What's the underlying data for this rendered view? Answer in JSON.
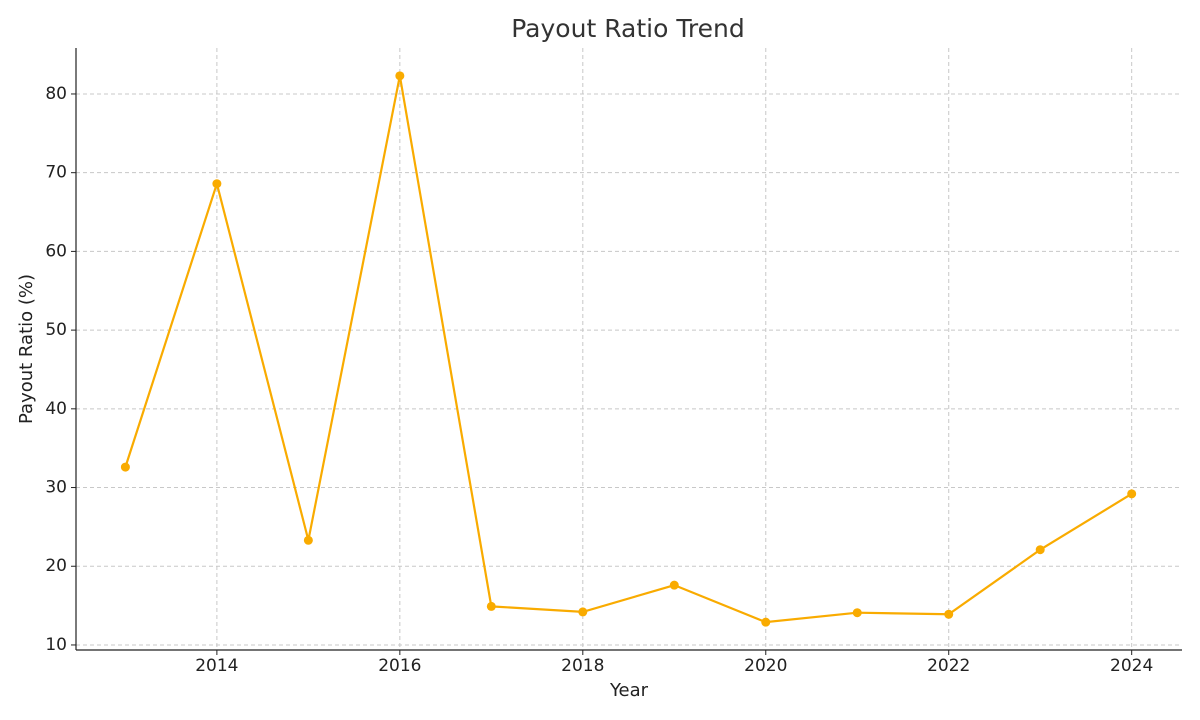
{
  "chart_data": {
    "type": "line",
    "title": "Payout Ratio Trend",
    "x_label": "Year",
    "y_label": "Payout Ratio (%)",
    "x": [
      2013,
      2014,
      2015,
      2016,
      2017,
      2018,
      2019,
      2020,
      2021,
      2022,
      2023,
      2024
    ],
    "series": [
      {
        "name": "Payout Ratio",
        "color": "#f9ab00",
        "values": [
          32.6,
          68.6,
          23.3,
          82.3,
          14.9,
          14.2,
          17.6,
          12.9,
          14.1,
          13.9,
          22.1,
          29.2
        ]
      }
    ],
    "xlim": [
      2012.46,
      2024.55
    ],
    "xticks": [
      2014,
      2016,
      2018,
      2020,
      2022,
      2024
    ],
    "ylim": [
      9.36,
      85.84
    ],
    "yticks": [
      10,
      20,
      30,
      40,
      50,
      60,
      70,
      80
    ],
    "grid": true
  }
}
